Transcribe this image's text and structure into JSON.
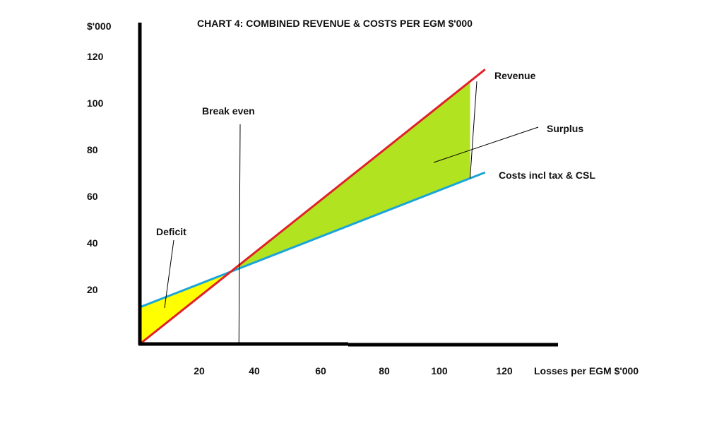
{
  "chart_data": {
    "type": "line",
    "title": "CHART 4: COMBINED REVENUE & COSTS PER EGM $'000",
    "ylabel": "$'000",
    "xlabel": "Losses per EGM $'000",
    "x_ticks": [
      20,
      40,
      60,
      80,
      100,
      120
    ],
    "y_ticks": [
      20,
      40,
      60,
      80,
      100,
      120
    ],
    "xlim": [
      0,
      125
    ],
    "ylim": [
      0,
      125
    ],
    "series": [
      {
        "name": "Revenue",
        "color": "#e0202a",
        "x": [
          0,
          115
        ],
        "y": [
          0,
          112
        ]
      },
      {
        "name": "Costs incl tax & CSL",
        "color": "#1aa5d8",
        "x": [
          0,
          115
        ],
        "y": [
          15,
          70
        ]
      }
    ],
    "regions": [
      {
        "label": "Deficit",
        "color": "#ffff00",
        "x_range": [
          0,
          33
        ]
      },
      {
        "label": "Surplus",
        "color": "#b2e321",
        "x_range": [
          33,
          110
        ]
      }
    ],
    "annotations": {
      "break_even": {
        "label": "Break even",
        "x": 33
      },
      "deficit": "Deficit",
      "surplus": "Surplus"
    },
    "colors": {
      "axis": "#000000",
      "revenue": "#e0202a",
      "costs": "#1aa5d8",
      "deficit": "#ffff00",
      "surplus": "#b2e321"
    }
  }
}
